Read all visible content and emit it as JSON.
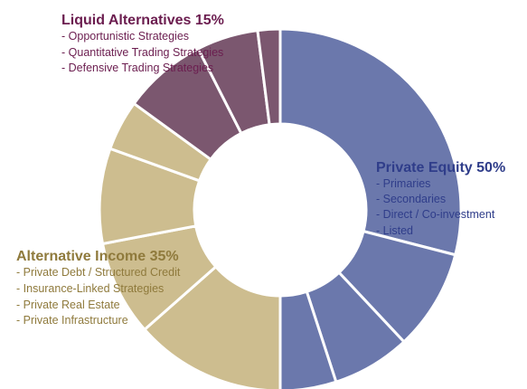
{
  "chart_data": {
    "type": "pie",
    "style": "donut",
    "colors": {
      "private_equity": "#6b78ac",
      "alternative_income": "#cdbd8f",
      "liquid_alternatives": "#7b576f",
      "separator": "#ffffff"
    },
    "label_colors": {
      "private_equity": "#2f3d8a",
      "alternative_income": "#8f7a3c",
      "liquid_alternatives": "#6b1d4f"
    },
    "slices": [
      {
        "group": "private_equity",
        "value": 29.0
      },
      {
        "group": "private_equity",
        "value": 9.0
      },
      {
        "group": "private_equity",
        "value": 7.0
      },
      {
        "group": "private_equity",
        "value": 5.0
      },
      {
        "group": "alternative_income",
        "value": 13.5
      },
      {
        "group": "alternative_income",
        "value": 8.5
      },
      {
        "group": "alternative_income",
        "value": 8.5
      },
      {
        "group": "alternative_income",
        "value": 4.5
      },
      {
        "group": "liquid_alternatives",
        "value": 7.5
      },
      {
        "group": "liquid_alternatives",
        "value": 5.5
      },
      {
        "group": "liquid_alternatives",
        "value": 2.0
      }
    ],
    "groups": {
      "liquid_alternatives": {
        "title": "Liquid Alternatives 15%",
        "items": [
          "Opportunistic Strategies",
          "Quantitative Trading Strategies",
          "Defensive Trading Strategies"
        ]
      },
      "private_equity": {
        "title": "Private Equity 50%",
        "items": [
          "Primaries",
          "Secondaries",
          "Direct / Co-investment",
          "Listed"
        ]
      },
      "alternative_income": {
        "title": "Alternative Income 35%",
        "items": [
          "Private Debt / Structured Credit",
          "Insurance-Linked Strategies",
          "Private Real Estate",
          "Private Infrastructure"
        ]
      }
    }
  }
}
